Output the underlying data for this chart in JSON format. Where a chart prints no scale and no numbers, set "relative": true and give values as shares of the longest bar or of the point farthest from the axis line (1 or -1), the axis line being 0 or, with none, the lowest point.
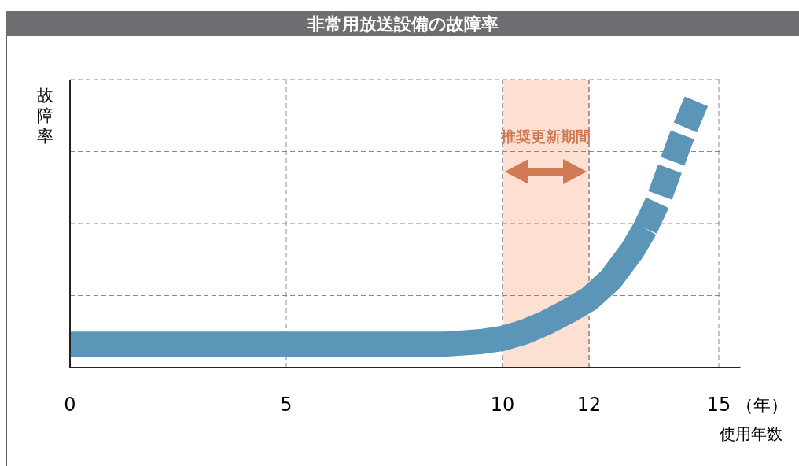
{
  "chart_data": {
    "type": "line",
    "title": "非常用放送設備の故障率",
    "xlabel": "使用年数",
    "ylabel": "故障率",
    "relative": true,
    "xlim": [
      0,
      15.5
    ],
    "xticks": [
      0,
      5,
      10,
      12,
      15
    ],
    "grid": true,
    "annotations": [
      "（年）"
    ],
    "bands": [
      {
        "axis": "x",
        "from": 10,
        "to": 12,
        "label": "推奨更新期間",
        "color": "#fde0d2"
      }
    ],
    "series": [
      {
        "color": "#5b96b8",
        "line_style": "solid",
        "x": [
          0,
          8.7,
          9.5,
          10,
          10.5,
          11,
          11.5,
          12,
          12.5,
          13,
          13.3
        ],
        "values": [
          0.086,
          0.086,
          0.095,
          0.107,
          0.13,
          0.164,
          0.205,
          0.251,
          0.323,
          0.429,
          0.51
        ]
      },
      {
        "color": "#5b96b8",
        "line_style": "dashed",
        "x": [
          13.3,
          13.6,
          13.9,
          14.2,
          14.55
        ],
        "values": [
          0.51,
          0.611,
          0.741,
          0.87,
          1.0
        ]
      }
    ]
  }
}
